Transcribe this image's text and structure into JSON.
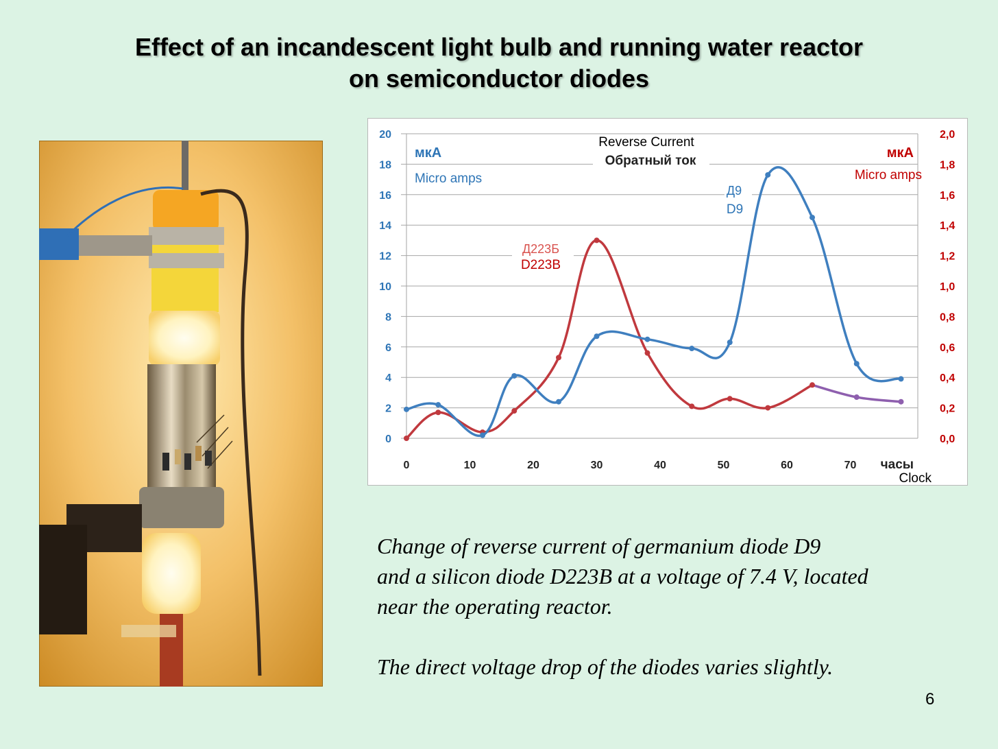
{
  "slide": {
    "title_line1": "Effect of an incandescent light bulb and running water reactor",
    "title_line2": "on semiconductor diodes",
    "caption_line1": "Change of reverse current of germanium diode D9",
    "caption_line2": "and a silicon diode D223B at a voltage of 7.4 V, located",
    "caption_line3": "near the operating reactor.",
    "caption_line4": "The direct voltage drop of the diodes varies slightly.",
    "page_number": "6"
  },
  "photo": {
    "description": "photo-of-reactor-with-glowing-bulb-and-diodes"
  },
  "colors": {
    "d9": "#3f7fbf",
    "d223b": "#c0393e",
    "d223b_tail": "#8e5fae",
    "left_axis": "#2e75b6",
    "right_axis": "#c00000",
    "grid": "#a6a6a6"
  },
  "chart_data": {
    "type": "line",
    "title": "Reverse Current",
    "title_ru": "Обратный ток",
    "xlabel": "часы",
    "xlabel_en": "Clock",
    "xlim": [
      0,
      80
    ],
    "x_ticks": [
      "0",
      "10",
      "20",
      "30",
      "40",
      "50",
      "60",
      "70"
    ],
    "ylim_left": [
      0,
      20
    ],
    "ylim_right": [
      0,
      2
    ],
    "y_ticks_left": [
      "0",
      "2",
      "4",
      "6",
      "8",
      "10",
      "12",
      "14",
      "16",
      "18",
      "20"
    ],
    "y_ticks_right": [
      "0,0",
      "0,2",
      "0,4",
      "0,6",
      "0,8",
      "1,0",
      "1,2",
      "1,4",
      "1,6",
      "1,8",
      "2,0"
    ],
    "ylabel_left": "мкА",
    "ylabel_left_en": "Micro amps",
    "ylabel_right": "мкА",
    "ylabel_right_en": "Micro amps",
    "series": [
      {
        "name": "D9",
        "name_ru": "Д9",
        "axis": "left",
        "x": [
          0,
          5,
          12,
          17,
          24,
          30,
          38,
          45,
          51,
          57,
          64,
          71,
          78
        ],
        "values": [
          1.9,
          2.2,
          0.2,
          4.1,
          2.4,
          6.7,
          6.5,
          5.9,
          6.3,
          17.3,
          14.5,
          4.9,
          3.9
        ]
      },
      {
        "name": "D223B",
        "name_ru": "Д223Б",
        "axis": "right",
        "x": [
          0,
          5,
          12,
          17,
          24,
          30,
          38,
          45,
          51,
          57,
          64,
          71,
          78
        ],
        "values": [
          0.0,
          0.17,
          0.04,
          0.18,
          0.53,
          1.3,
          0.56,
          0.21,
          0.26,
          0.2,
          0.35,
          0.27,
          0.24
        ]
      }
    ]
  }
}
